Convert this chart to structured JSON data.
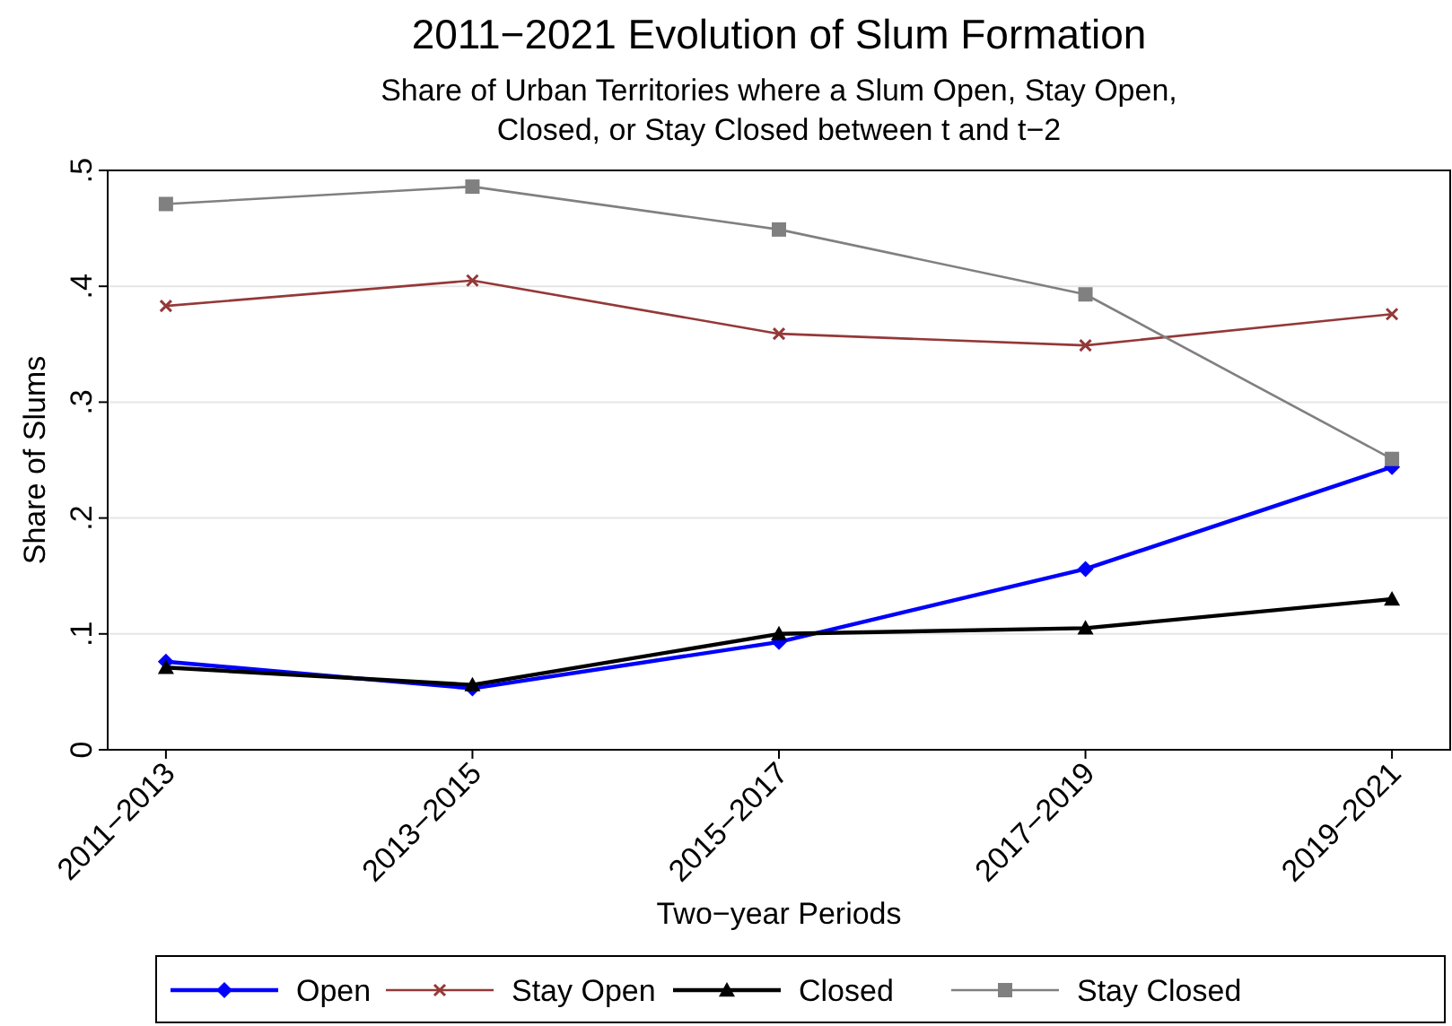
{
  "chart_data": {
    "type": "line",
    "title": "2011−2021 Evolution of Slum Formation",
    "subtitle": "Share of Urban Territories where a Slum Open, Stay Open,\nClosed, or Stay Closed between t and t−2",
    "xlabel": "Two−year Periods",
    "ylabel": "Share of Slums",
    "categories": [
      "2011−2013",
      "2013−2015",
      "2015−2017",
      "2017−2019",
      "2019−2021"
    ],
    "series": [
      {
        "name": "Open",
        "color": "#0000ff",
        "marker": "diamond",
        "values": [
          0.076,
          0.053,
          0.093,
          0.156,
          0.244
        ]
      },
      {
        "name": "Stay Open",
        "color": "#943838",
        "marker": "cross",
        "values": [
          0.383,
          0.405,
          0.359,
          0.349,
          0.376
        ]
      },
      {
        "name": "Closed",
        "color": "#000000",
        "marker": "triangle",
        "values": [
          0.071,
          0.056,
          0.1,
          0.105,
          0.13
        ]
      },
      {
        "name": "Stay Closed",
        "color": "#808080",
        "marker": "square",
        "values": [
          0.471,
          0.486,
          0.449,
          0.393,
          0.251
        ]
      }
    ],
    "ylim": [
      0,
      0.5
    ],
    "yticks": [
      {
        "value": 0,
        "label": "0"
      },
      {
        "value": 0.1,
        "label": ".1"
      },
      {
        "value": 0.2,
        "label": ".2"
      },
      {
        "value": 0.3,
        "label": ".3"
      },
      {
        "value": 0.4,
        "label": ".4"
      },
      {
        "value": 0.5,
        "label": ".5"
      }
    ],
    "grid": "y",
    "legend": "bottom",
    "line_style": "solid"
  }
}
